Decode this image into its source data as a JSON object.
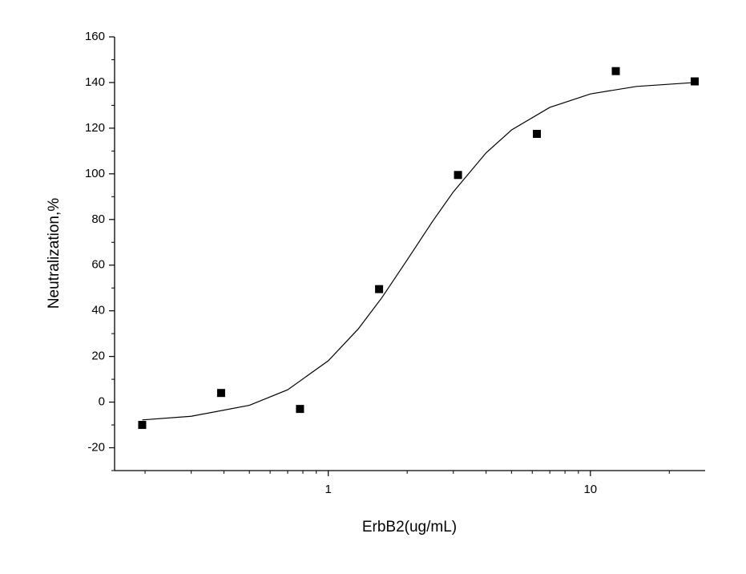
{
  "chart_data": {
    "type": "scatter",
    "x_label": "ErbB2(ug/mL)",
    "y_label": "Neutralization,%",
    "x_scale": "log",
    "xlim": [
      0.153,
      27.4
    ],
    "xticks": [
      1,
      10
    ],
    "xminor_ticks": [
      0.2,
      0.3,
      0.4,
      0.5,
      0.6,
      0.7,
      0.8,
      0.9,
      2,
      3,
      4,
      5,
      6,
      7,
      8,
      9,
      20
    ],
    "ylim": [
      -30,
      160
    ],
    "yticks": [
      -20,
      0,
      20,
      40,
      60,
      80,
      100,
      120,
      140,
      160
    ],
    "yminor_ticks": [
      -30,
      -10,
      10,
      30,
      50,
      70,
      90,
      110,
      130,
      150
    ],
    "series": [
      {
        "mode": "markers",
        "color": "#000000",
        "x": [
          0.195,
          0.39,
          0.78,
          1.5625,
          3.125,
          6.25,
          12.5,
          25
        ],
        "values": [
          -10,
          4,
          -3,
          49.5,
          99.5,
          117.5,
          145,
          140.5
        ]
      },
      {
        "mode": "line",
        "color": "#000000",
        "x": [
          0.195,
          0.3,
          0.5,
          0.7,
          1,
          1.3,
          1.6,
          2,
          2.5,
          3,
          4,
          5,
          7,
          10,
          15,
          25
        ],
        "values": [
          -7.8,
          -6.2,
          -1.4,
          5.4,
          18.1,
          32,
          45.7,
          62.3,
          79.2,
          92.1,
          109.2,
          119.2,
          129.1,
          135,
          138.3,
          140
        ]
      }
    ]
  }
}
